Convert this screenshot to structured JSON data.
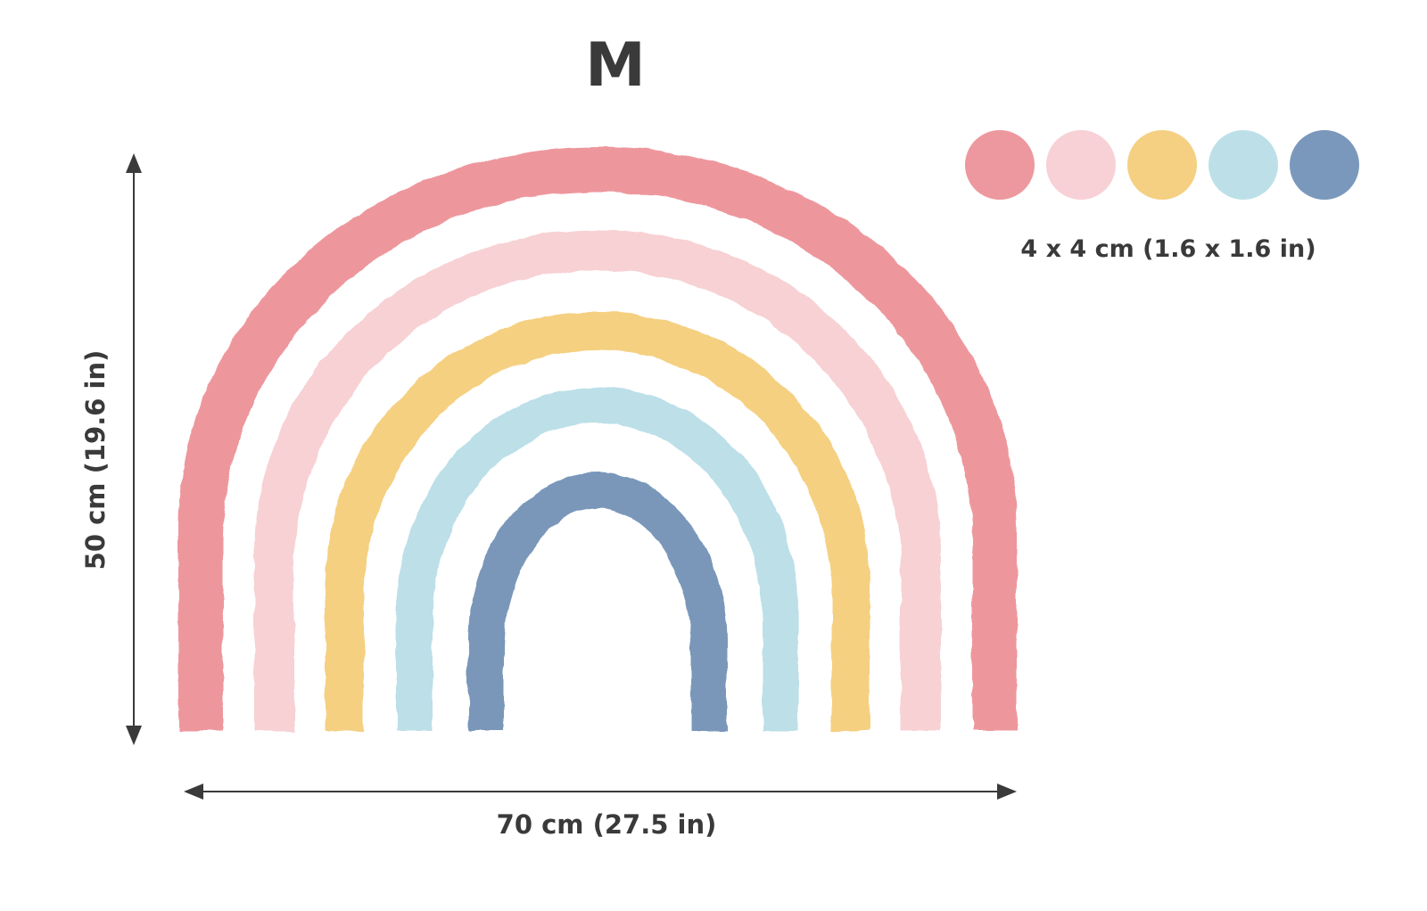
{
  "size_label": "M",
  "dimensions": {
    "width_label": "70 cm (27.5 in)",
    "height_label": "50 cm (19.6 in)"
  },
  "dots": {
    "size_label": "4 x 4 cm (1.6 x 1.6 in)",
    "colors": [
      "#ec8f96",
      "#f6cdd1",
      "#f4cc77",
      "#b7dde6",
      "#6f8fb5"
    ]
  },
  "rainbow": {
    "band_colors": [
      "#ec8f96",
      "#f6cdd1",
      "#f4cc77",
      "#b7dde6",
      "#6f8fb5"
    ]
  },
  "arrow_color": "#3a3a3a"
}
